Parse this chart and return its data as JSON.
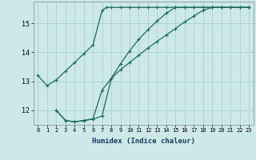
{
  "xlabel": "Humidex (Indice chaleur)",
  "ylabel": "",
  "bg_color": "#cce8e8",
  "grid_color": "#aad0d0",
  "line_color": "#1a6b5a",
  "xlim": [
    -0.5,
    23.5
  ],
  "ylim": [
    11.5,
    15.75
  ],
  "yticks": [
    12,
    13,
    14,
    15
  ],
  "xticks": [
    0,
    1,
    2,
    3,
    4,
    5,
    6,
    7,
    8,
    9,
    10,
    11,
    12,
    13,
    14,
    15,
    16,
    17,
    18,
    19,
    20,
    21,
    22,
    23
  ],
  "line1_x": [
    0,
    1,
    2,
    3,
    4,
    5,
    6,
    7,
    7.5,
    8,
    9,
    10,
    11,
    12,
    13,
    14,
    15,
    16,
    17,
    18,
    19,
    20,
    21,
    22,
    23
  ],
  "line1_y": [
    13.2,
    12.85,
    13.05,
    13.35,
    13.65,
    13.95,
    14.25,
    15.45,
    15.55,
    15.55,
    15.55,
    15.55,
    15.55,
    15.55,
    15.55,
    15.55,
    15.55,
    15.55,
    15.55,
    15.55,
    15.55,
    15.55,
    15.55,
    15.55,
    15.55
  ],
  "line2_x": [
    2,
    3,
    4,
    5,
    6,
    7,
    8,
    9,
    10,
    11,
    12,
    13,
    14,
    15,
    16,
    17,
    18,
    19,
    20,
    21,
    22,
    23
  ],
  "line2_y": [
    12.0,
    11.65,
    11.6,
    11.65,
    11.7,
    11.8,
    13.1,
    13.4,
    13.65,
    13.9,
    14.15,
    14.38,
    14.6,
    14.82,
    15.05,
    15.25,
    15.45,
    15.55,
    15.55,
    15.55,
    15.55,
    15.55
  ],
  "line3_x": [
    2,
    3,
    4,
    5,
    6,
    7,
    8,
    9,
    10,
    11,
    12,
    13,
    14,
    15,
    16,
    17,
    18,
    19,
    20,
    21,
    22,
    23
  ],
  "line3_y": [
    12.0,
    11.65,
    11.6,
    11.65,
    11.7,
    12.7,
    13.1,
    13.6,
    14.05,
    14.45,
    14.78,
    15.08,
    15.35,
    15.55,
    15.55,
    15.55,
    15.55,
    15.55,
    15.55,
    15.55,
    15.55,
    15.55
  ]
}
